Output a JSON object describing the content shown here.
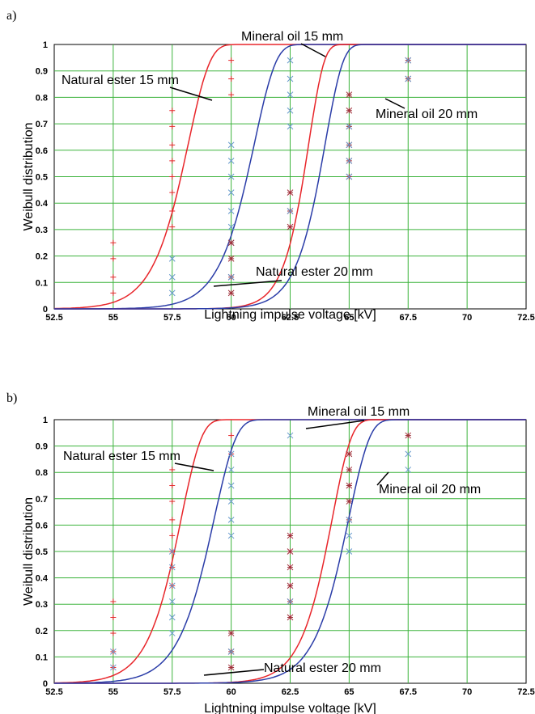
{
  "chart_data": [
    {
      "panel": "a)",
      "type": "line",
      "xlabel": "Lightning impulse voltage [kV]",
      "ylabel": "Weibull distribution",
      "xlim": [
        52.5,
        72.5
      ],
      "ylim": [
        0,
        1
      ],
      "xticks": [
        "52.5",
        "55",
        "57.5",
        "60",
        "62.5",
        "65",
        "67.5",
        "70",
        "72.5"
      ],
      "yticks": [
        "0",
        "0.1",
        "0.2",
        "0.3",
        "0.4",
        "0.5",
        "0.6",
        "0.7",
        "0.8",
        "0.9",
        "1"
      ],
      "grid": true,
      "colors": {
        "red": "#e8262b",
        "blue": "#2b3da8",
        "cross": "#6699cc",
        "star": "#a0303a",
        "grid": "#3cb33c"
      },
      "series": [
        {
          "name": "Natural ester 15 mm",
          "color": "#e8262b",
          "scale": 58.2,
          "shape": 10.5,
          "points": [
            {
              "x": 55,
              "y": [
                0.06,
                0.12,
                0.19,
                0.25
              ]
            },
            {
              "x": 57.5,
              "y": [
                0.31,
                0.37,
                0.44,
                0.5,
                0.56,
                0.62,
                0.69,
                0.75
              ]
            },
            {
              "x": 60,
              "y": [
                0.81,
                0.87,
                0.94
              ]
            }
          ],
          "marker": "+"
        },
        {
          "name": "Mineral oil 15 mm",
          "color": "#2b3da8",
          "scale": 61.0,
          "shape": 11,
          "points": [
            {
              "x": 57.5,
              "y": [
                0.06,
                0.12,
                0.19
              ]
            },
            {
              "x": 60,
              "y": [
                0.25,
                0.31,
                0.37,
                0.44,
                0.5,
                0.56,
                0.62
              ]
            },
            {
              "x": 62.5,
              "y": [
                0.69,
                0.75,
                0.81,
                0.87,
                0.94
              ]
            }
          ],
          "marker": "x"
        },
        {
          "name": "Natural ester 20 mm",
          "color": "#e8262b",
          "scale": 63.3,
          "shape": 16,
          "points": [
            {
              "x": 60,
              "y": [
                0.06,
                0.12,
                0.19,
                0.25
              ]
            },
            {
              "x": 62.5,
              "y": [
                0.31,
                0.37,
                0.44
              ]
            },
            {
              "x": 65,
              "y": [
                0.5,
                0.56,
                0.62,
                0.69,
                0.75,
                0.81
              ]
            },
            {
              "x": 67.5,
              "y": [
                0.87,
                0.94
              ]
            }
          ],
          "marker": "*"
        },
        {
          "name": "Mineral oil 20 mm",
          "color": "#2b3da8",
          "scale": 64.0,
          "shape": 14,
          "points": [
            {
              "x": 60,
              "y": [
                0.12
              ]
            },
            {
              "x": 62.5,
              "y": [
                0.37
              ]
            },
            {
              "x": 65,
              "y": [
                0.5,
                0.56,
                0.62,
                0.69
              ]
            },
            {
              "x": 67.5,
              "y": [
                0.87,
                0.94
              ]
            }
          ],
          "marker": "x"
        }
      ],
      "annotations": [
        {
          "text": "Mineral oil 15 mm",
          "series": "Mineral oil 15 mm"
        },
        {
          "text": "Natural ester 15 mm",
          "series": "Natural ester 15 mm"
        },
        {
          "text": "Mineral oil 20 mm",
          "series": "Mineral oil 20 mm"
        },
        {
          "text": "Natural ester 20 mm",
          "series": "Natural ester 20 mm"
        }
      ]
    },
    {
      "panel": "b)",
      "type": "line",
      "xlabel": "Lightning impulse voltage [kV]",
      "ylabel": "Weibull distribution",
      "xlim": [
        52.5,
        72.5
      ],
      "ylim": [
        0,
        1
      ],
      "xticks": [
        "52.5",
        "55",
        "57.5",
        "60",
        "62.5",
        "65",
        "67.5",
        "70",
        "72.5"
      ],
      "yticks": [
        "0",
        "0.1",
        "0.2",
        "0.3",
        "0.4",
        "0.5",
        "0.6",
        "0.7",
        "0.8",
        "0.9",
        "1"
      ],
      "grid": true,
      "colors": {
        "red": "#e8262b",
        "blue": "#2b3da8",
        "cross": "#6699cc",
        "star": "#a0303a",
        "grid": "#3cb33c"
      },
      "series": [
        {
          "name": "Natural ester 15 mm",
          "color": "#e8262b",
          "scale": 57.9,
          "shape": 11,
          "points": [
            {
              "x": 55,
              "y": [
                0.06,
                0.12,
                0.19,
                0.25,
                0.31
              ]
            },
            {
              "x": 57.5,
              "y": [
                0.37,
                0.44,
                0.5,
                0.56,
                0.62,
                0.69,
                0.75,
                0.81
              ]
            },
            {
              "x": 60,
              "y": [
                0.87,
                0.94
              ]
            }
          ],
          "marker": "+"
        },
        {
          "name": "Mineral oil 15 mm",
          "color": "#2b3da8",
          "scale": 59.3,
          "shape": 10.5,
          "points": [
            {
              "x": 55,
              "y": [
                0.06,
                0.12
              ]
            },
            {
              "x": 57.5,
              "y": [
                0.19,
                0.25,
                0.31,
                0.37,
                0.44,
                0.5
              ]
            },
            {
              "x": 60,
              "y": [
                0.56,
                0.62,
                0.69,
                0.75,
                0.81,
                0.87
              ]
            },
            {
              "x": 62.5,
              "y": [
                0.94
              ]
            }
          ],
          "marker": "x"
        },
        {
          "name": "Natural ester 20 mm",
          "color": "#e8262b",
          "scale": 64.3,
          "shape": 13,
          "points": [
            {
              "x": 60,
              "y": [
                0.06,
                0.12,
                0.19
              ]
            },
            {
              "x": 62.5,
              "y": [
                0.25,
                0.31,
                0.37,
                0.44,
                0.5,
                0.56
              ]
            },
            {
              "x": 65,
              "y": [
                0.62,
                0.69,
                0.75,
                0.81,
                0.87
              ]
            },
            {
              "x": 67.5,
              "y": [
                0.94
              ]
            }
          ],
          "marker": "*"
        },
        {
          "name": "Mineral oil 20 mm",
          "color": "#2b3da8",
          "scale": 65.0,
          "shape": 12,
          "points": [
            {
              "x": 60,
              "y": [
                0.12
              ]
            },
            {
              "x": 62.5,
              "y": [
                0.31
              ]
            },
            {
              "x": 65,
              "y": [
                0.5,
                0.56,
                0.62
              ]
            },
            {
              "x": 67.5,
              "y": [
                0.81,
                0.87
              ]
            }
          ],
          "marker": "x"
        }
      ],
      "annotations": [
        {
          "text": "Mineral oil 15 mm",
          "series": "Mineral oil 15 mm"
        },
        {
          "text": "Natural ester 15 mm",
          "series": "Natural ester 15 mm"
        },
        {
          "text": "Mineral oil 20 mm",
          "series": "Mineral oil 20 mm"
        },
        {
          "text": "Natural ester 20 mm",
          "series": "Natural ester 20 mm"
        }
      ]
    }
  ]
}
